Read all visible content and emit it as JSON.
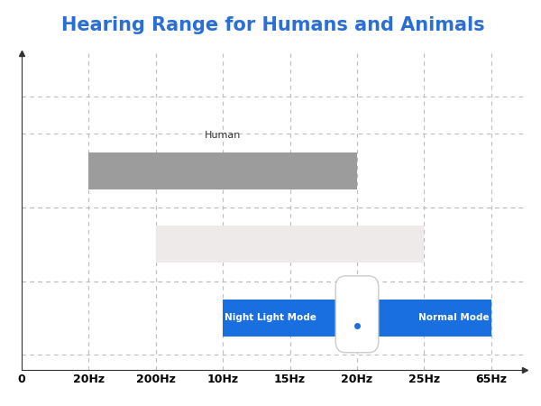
{
  "chart_data": {
    "type": "range_bar",
    "title": "Hearing Range for Humans and Animals",
    "orientation": "horizontal",
    "xlim": [
      0,
      7.5
    ],
    "xticks": [
      0,
      {
        "value": 1,
        "label": "20Hz"
      },
      {
        "value": 2,
        "label": "200Hz"
      },
      {
        "value": 3,
        "label": "10Hz"
      },
      {
        "value": 4,
        "label": "15Hz"
      },
      {
        "value": 5,
        "label": "20Hz"
      },
      {
        "value": 6,
        "label": "25Hz"
      },
      {
        "value": 7,
        "label": "65Hz"
      }
    ],
    "tick_labels": "x",
    "grid": true,
    "series": [
      {
        "name": "Human",
        "start": 1,
        "end": 5,
        "color": "#9c9c9c"
      },
      {
        "start": 2,
        "end": 6,
        "color": "#eeeaea"
      },
      {
        "start": 3,
        "end": 7,
        "color": "#1a6fe0",
        "annotations": [
          "Night Light Mode",
          "Normal Mode"
        ]
      }
    ]
  }
}
